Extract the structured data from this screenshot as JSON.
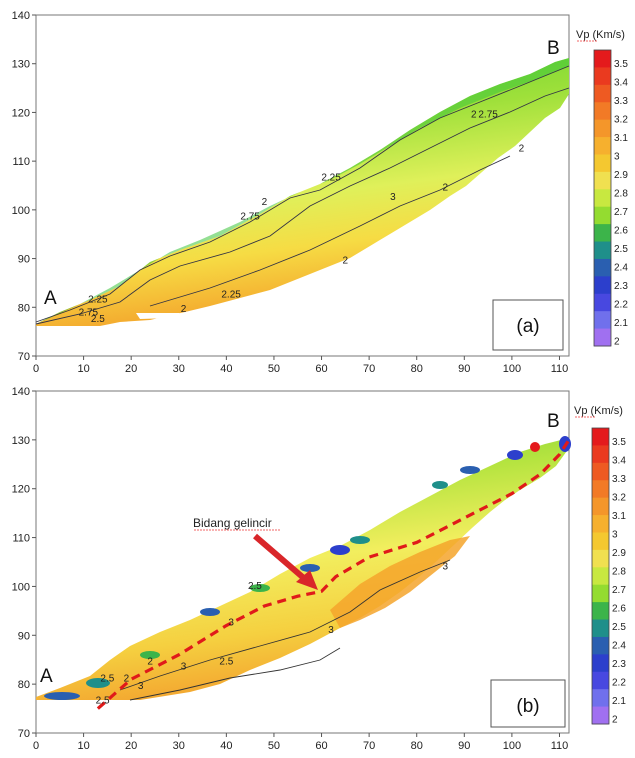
{
  "chart_data": [
    {
      "type": "heatmap",
      "panel_label": "(a)",
      "endpoint_start": "A",
      "endpoint_end": "B",
      "xlim": [
        0,
        112
      ],
      "ylim": [
        70,
        140
      ],
      "x_ticks": [
        0,
        10,
        20,
        30,
        40,
        50,
        60,
        70,
        80,
        90,
        100,
        110
      ],
      "y_ticks": [
        70,
        80,
        90,
        100,
        110,
        120,
        130,
        140
      ],
      "colorbar": {
        "title": "Vp (Km/s)",
        "values": [
          3.5,
          3.4,
          3.3,
          3.2,
          3.1,
          3,
          2.9,
          2.8,
          2.7,
          2.6,
          2.5,
          2.4,
          2.3,
          2.2,
          2.1,
          2
        ],
        "colors": [
          "#e41a1c",
          "#ea3a1f",
          "#ee5a22",
          "#f27a26",
          "#f4962a",
          "#f6b02e",
          "#f4c830",
          "#f0e050",
          "#c8e840",
          "#94dc30",
          "#3cb44a",
          "#1f8f8a",
          "#2a5fb0",
          "#2c3fcc",
          "#4848e0",
          "#7070ec",
          "#a070f0"
        ]
      },
      "contour_labels": [
        {
          "text": "2.25",
          "x": 13,
          "y": 81
        },
        {
          "text": "2.75",
          "x": 11,
          "y": 78.3
        },
        {
          "text": "2.5",
          "x": 13,
          "y": 77
        },
        {
          "text": "2",
          "x": 31,
          "y": 79
        },
        {
          "text": "2.25",
          "x": 41,
          "y": 82
        },
        {
          "text": "2",
          "x": 48,
          "y": 101
        },
        {
          "text": "2.75",
          "x": 45,
          "y": 98
        },
        {
          "text": "2.25",
          "x": 62,
          "y": 106
        },
        {
          "text": "3",
          "x": 75,
          "y": 102
        },
        {
          "text": "2",
          "x": 65,
          "y": 89
        },
        {
          "text": "2",
          "x": 92,
          "y": 119
        },
        {
          "text": "2.75",
          "x": 95,
          "y": 119
        },
        {
          "text": "2",
          "x": 102,
          "y": 112
        },
        {
          "text": "2",
          "x": 86,
          "y": 104
        }
      ]
    },
    {
      "type": "heatmap",
      "panel_label": "(b)",
      "endpoint_start": "A",
      "endpoint_end": "B",
      "annotation": "Bidang gelincir",
      "xlim": [
        0,
        112
      ],
      "ylim": [
        70,
        140
      ],
      "x_ticks": [
        0,
        10,
        20,
        30,
        40,
        50,
        60,
        70,
        80,
        90,
        100,
        110
      ],
      "y_ticks": [
        70,
        80,
        90,
        100,
        110,
        120,
        130,
        140
      ],
      "colorbar": {
        "title": "Vp (Km/s)",
        "values": [
          3.5,
          3.4,
          3.3,
          3.2,
          3.1,
          3,
          2.9,
          2.8,
          2.7,
          2.6,
          2.5,
          2.4,
          2.3,
          2.2,
          2.1,
          2
        ],
        "colors": [
          "#e41a1c",
          "#ea3a1f",
          "#ee5a22",
          "#f27a26",
          "#f4962a",
          "#f6b02e",
          "#f4c830",
          "#f0e050",
          "#c8e840",
          "#94dc30",
          "#3cb44a",
          "#1f8f8a",
          "#2a5fb0",
          "#2c3fcc",
          "#4848e0",
          "#7070ec",
          "#a070f0"
        ]
      },
      "slip_plane": [
        [
          13,
          75
        ],
        [
          20,
          81
        ],
        [
          30,
          86
        ],
        [
          40,
          92
        ],
        [
          48,
          96
        ],
        [
          55,
          98
        ],
        [
          60,
          99
        ],
        [
          63,
          102
        ],
        [
          70,
          106
        ],
        [
          80,
          109
        ],
        [
          90,
          114
        ],
        [
          100,
          119
        ],
        [
          106,
          123
        ],
        [
          110,
          127
        ],
        [
          112,
          130
        ]
      ],
      "contour_labels": [
        {
          "text": "2.5",
          "x": 15,
          "y": 80.5
        },
        {
          "text": "2",
          "x": 19,
          "y": 80.5
        },
        {
          "text": "2.5",
          "x": 14,
          "y": 76
        },
        {
          "text": "3",
          "x": 22,
          "y": 79
        },
        {
          "text": "3",
          "x": 31,
          "y": 83
        },
        {
          "text": "2",
          "x": 24,
          "y": 84
        },
        {
          "text": "3",
          "x": 41,
          "y": 92
        },
        {
          "text": "2.5",
          "x": 40,
          "y": 84
        },
        {
          "text": "3",
          "x": 62,
          "y": 90.5
        },
        {
          "text": "2.5",
          "x": 46,
          "y": 99.5
        },
        {
          "text": "3",
          "x": 86,
          "y": 103.5
        }
      ]
    }
  ]
}
